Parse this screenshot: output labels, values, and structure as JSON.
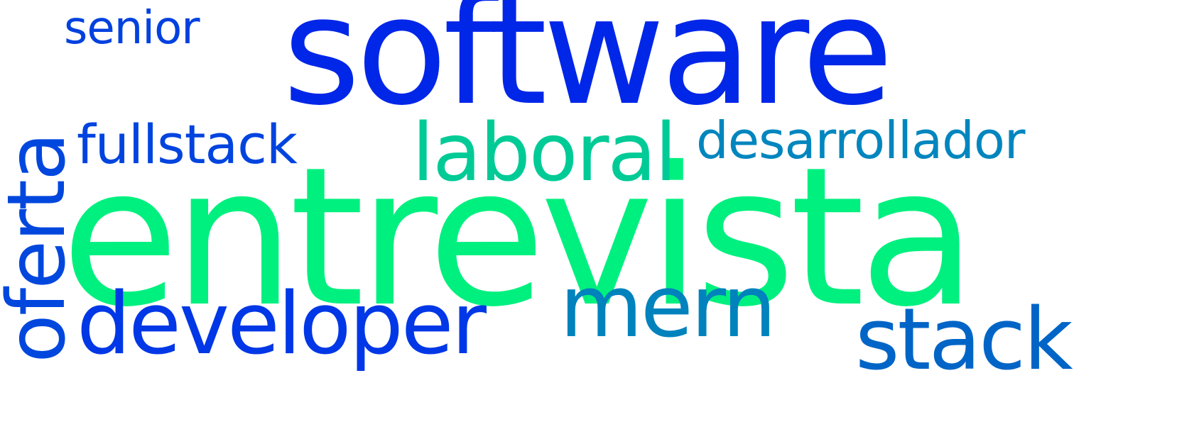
{
  "word_cloud": {
    "words": [
      {
        "text": "software",
        "color": "#0026e8"
      },
      {
        "text": "entrevista",
        "color": "#00f07f"
      },
      {
        "text": "senior",
        "color": "#0041df"
      },
      {
        "text": "fullstack",
        "color": "#0044df"
      },
      {
        "text": "laboral",
        "color": "#00cb96"
      },
      {
        "text": "desarrollador",
        "color": "#0086be"
      },
      {
        "text": "oferta",
        "color": "#0047de"
      },
      {
        "text": "developer",
        "color": "#0037e6"
      },
      {
        "text": "mern",
        "color": "#0082bd"
      },
      {
        "text": "stack",
        "color": "#0065c6"
      }
    ],
    "background_color": "#ffffff"
  }
}
